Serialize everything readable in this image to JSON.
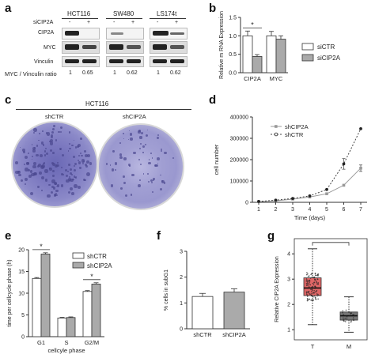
{
  "panels": {
    "a": "a",
    "b": "b",
    "c": "c",
    "d": "d",
    "e": "e",
    "f": "f",
    "g": "g"
  },
  "panel_a": {
    "cell_lines": [
      "HCT116",
      "SW480",
      "LS174t"
    ],
    "treatment_label": "siCIP2A",
    "signs": [
      "-",
      "+"
    ],
    "rows": [
      "CIP2A",
      "MYC",
      "Vinculin"
    ],
    "ratio_label": "MYC / Vinculin ratio",
    "ratios": [
      "1",
      "0.65",
      "1",
      "0.62",
      "1",
      "0.62"
    ]
  },
  "panel_c": {
    "title": "HCT116",
    "labels": [
      "shCTR",
      "shCIP2A"
    ]
  },
  "chart_data": [
    {
      "id": "b",
      "type": "bar",
      "categories": [
        "CIP2A",
        "MYC"
      ],
      "series": [
        {
          "name": "siCTR",
          "values": [
            1.0,
            1.0
          ],
          "errors": [
            0.13,
            0.12
          ],
          "color": "#ffffff"
        },
        {
          "name": "siCIP2A",
          "values": [
            0.44,
            0.91
          ],
          "errors": [
            0.05,
            0.09
          ],
          "color": "#aaaaaa"
        }
      ],
      "ylabel": "Relative m RNA Expression",
      "ylim": [
        0,
        1.5
      ],
      "yticks": [
        "0.0",
        "0.5",
        "1.0",
        "1.5"
      ],
      "significance": [
        {
          "category": "CIP2A",
          "mark": "*"
        }
      ],
      "legend": "right"
    },
    {
      "id": "d",
      "type": "line",
      "x": [
        1,
        2,
        3,
        4,
        5,
        6,
        7
      ],
      "series": [
        {
          "name": "shCIP2A",
          "values": [
            3000,
            7000,
            15000,
            25000,
            40000,
            80000,
            160000
          ],
          "errors": [
            0,
            0,
            0,
            0,
            0,
            0,
            15000
          ],
          "style": "solid",
          "marker": "square"
        },
        {
          "name": "shCTR",
          "values": [
            4000,
            10000,
            18000,
            30000,
            60000,
            180000,
            345000
          ],
          "errors": [
            0,
            0,
            0,
            0,
            0,
            25000,
            0
          ],
          "style": "dotted",
          "marker": "circle"
        }
      ],
      "xlabel": "Time (days)",
      "ylabel": "cell number",
      "ylim": [
        0,
        400000
      ],
      "yticks": [
        "0",
        "100000",
        "200000",
        "300000",
        "400000"
      ],
      "xticks": [
        "1",
        "2",
        "3",
        "4",
        "5",
        "6",
        "7"
      ],
      "legend": "top-left"
    },
    {
      "id": "e",
      "type": "bar",
      "categories": [
        "G1",
        "S",
        "G2/M"
      ],
      "series": [
        {
          "name": "shCTR",
          "values": [
            13.4,
            4.3,
            10.4
          ],
          "errors": [
            0.2,
            0.15,
            0.2
          ],
          "color": "#ffffff"
        },
        {
          "name": "shCIP2A",
          "values": [
            19.0,
            4.4,
            12.1
          ],
          "errors": [
            0.3,
            0.15,
            0.3
          ],
          "color": "#aaaaaa"
        }
      ],
      "xlabel": "cellcyle phase",
      "ylabel": "time per cellcycle phase (h)",
      "ylim": [
        0,
        20
      ],
      "yticks": [
        "0",
        "5",
        "10",
        "15",
        "20"
      ],
      "significance": [
        {
          "category": "G1",
          "mark": "*"
        },
        {
          "category": "G2/M",
          "mark": "*"
        }
      ],
      "legend": "top-right"
    },
    {
      "id": "f",
      "type": "bar",
      "categories": [
        "shCTR",
        "shCIP2A"
      ],
      "values": [
        1.25,
        1.42
      ],
      "errors": [
        0.12,
        0.13
      ],
      "ylabel": "% cells in subG1",
      "ylim": [
        0,
        3
      ],
      "yticks": [
        "0",
        "1",
        "2",
        "3"
      ]
    },
    {
      "id": "g",
      "type": "box",
      "categories": [
        "T",
        "M"
      ],
      "boxes": [
        {
          "name": "T",
          "min": 1.2,
          "q1": 2.35,
          "median": 2.65,
          "q3": 3.05,
          "max": 4.2,
          "color": "#e06666"
        },
        {
          "name": "M",
          "min": 0.9,
          "q1": 1.38,
          "median": 1.55,
          "q3": 1.7,
          "max": 2.3,
          "color": "#777777"
        }
      ],
      "ylabel": "Relative CIP2A Expression",
      "ylim": [
        0.6,
        4.6
      ],
      "yticks": [
        "1",
        "2",
        "3",
        "4"
      ],
      "significance": [
        {
          "between": [
            "T",
            "M"
          ],
          "mark": ""
        }
      ]
    }
  ]
}
